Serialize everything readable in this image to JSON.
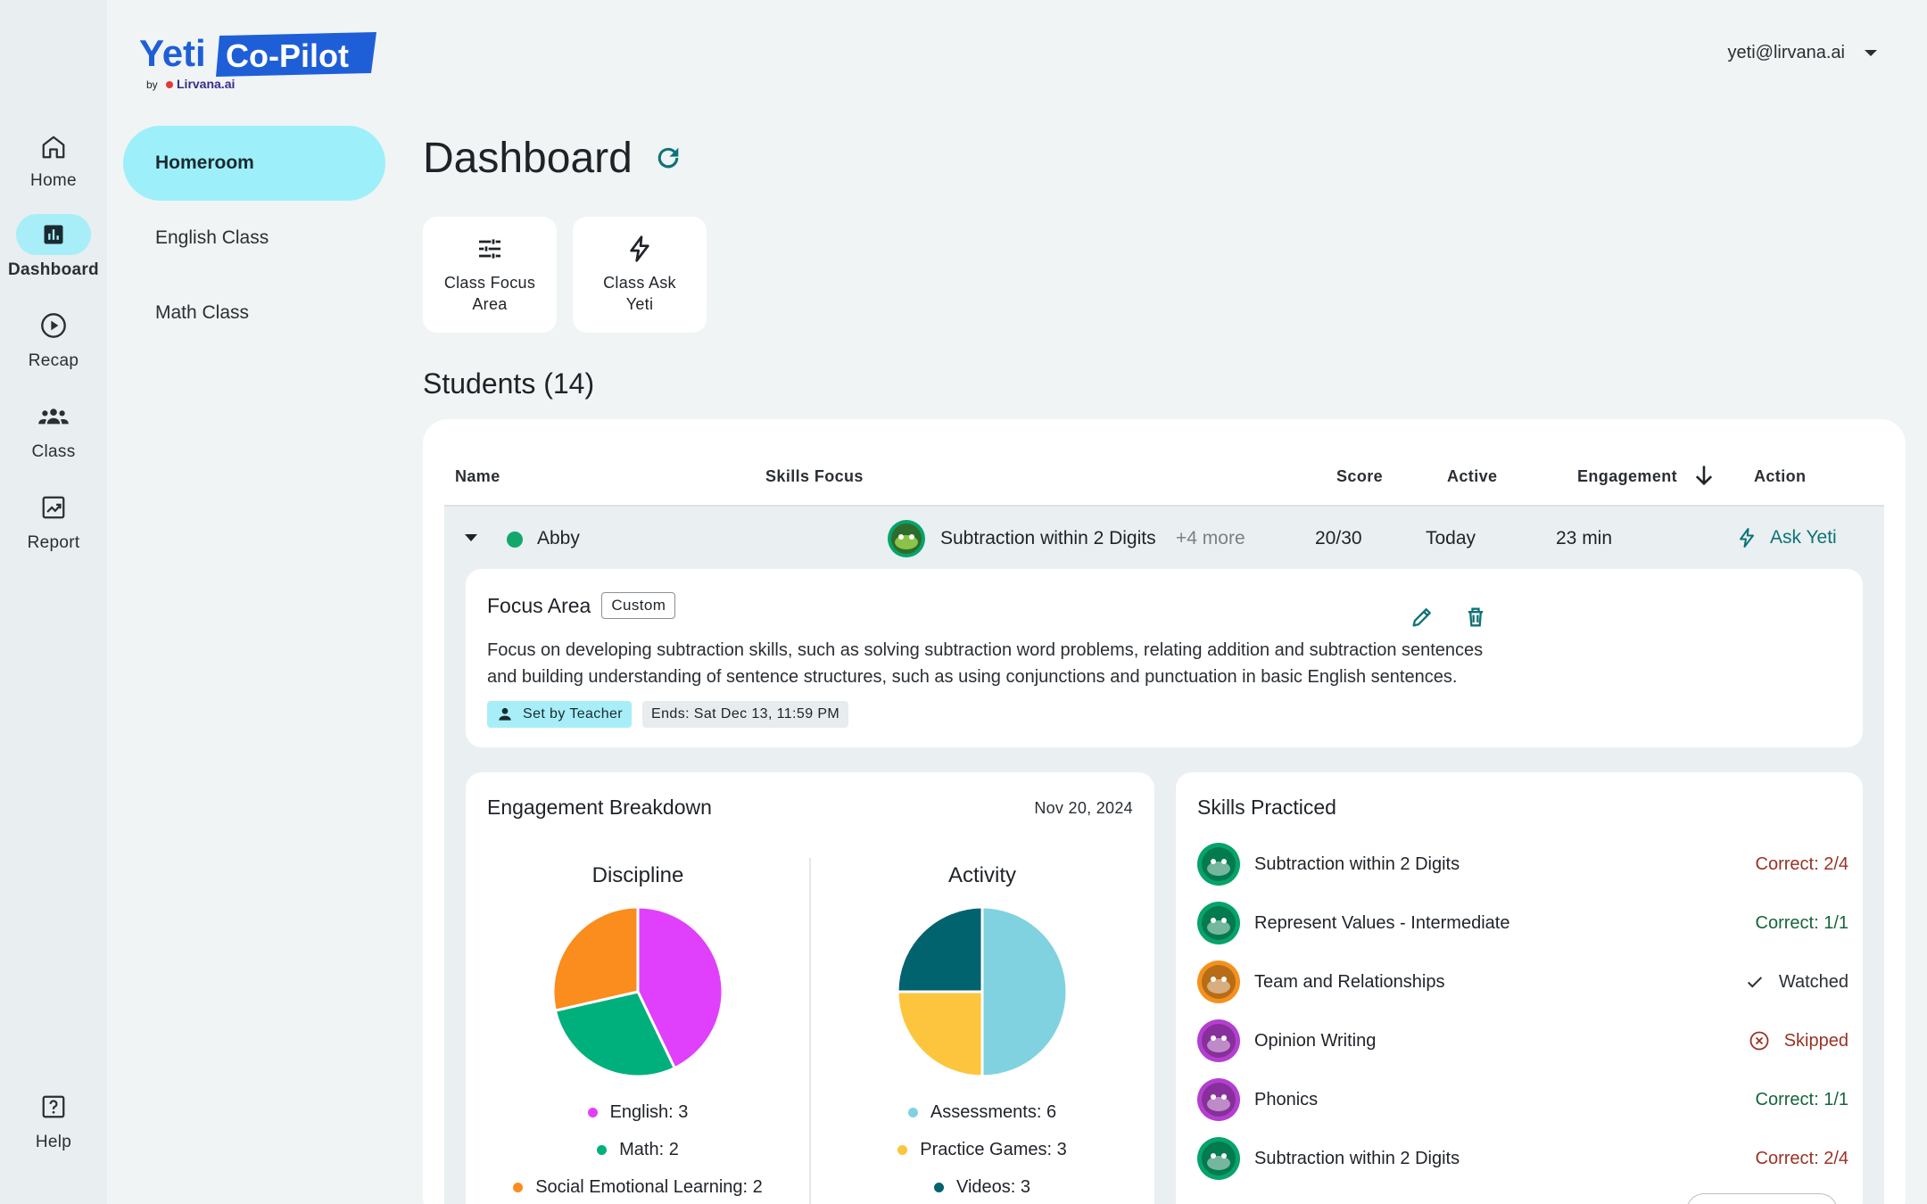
{
  "app": {
    "logo_main": "Yeti",
    "logo_brand": "Co-Pilot",
    "logo_by": "by",
    "logo_company": "Lirvana.ai",
    "user_email": "yeti@lirvana.ai"
  },
  "rail": [
    {
      "label": "Home",
      "icon": "home-icon"
    },
    {
      "label": "Dashboard",
      "icon": "bar-chart-icon"
    },
    {
      "label": "Recap",
      "icon": "play-circle-icon"
    },
    {
      "label": "Class",
      "icon": "group-icon"
    },
    {
      "label": "Report",
      "icon": "report-icon"
    },
    {
      "label": "Help",
      "icon": "help-icon"
    }
  ],
  "subnav": [
    {
      "label": "Homeroom"
    },
    {
      "label": "English Class"
    },
    {
      "label": "Math Class"
    }
  ],
  "page": {
    "title": "Dashboard",
    "quick_actions": [
      {
        "label": "Class Focus Area",
        "icon": "tune-icon"
      },
      {
        "label": "Class Ask Yeti",
        "icon": "bolt-icon"
      }
    ],
    "students_title": "Students (14)"
  },
  "table": {
    "headers": {
      "name": "Name",
      "skills": "Skills Focus",
      "score": "Score",
      "active": "Active",
      "engagement": "Engagement",
      "action": "Action"
    },
    "row": {
      "name": "Abby",
      "skill": "Subtraction within 2 Digits",
      "more": "+4 more",
      "score": "20/30",
      "active": "Today",
      "engagement": "23 min",
      "action": "Ask Yeti"
    }
  },
  "focus": {
    "title": "Focus Area",
    "tag": "Custom",
    "text_line1": "Focus on developing subtraction skills, such as solving subtraction word problems, relating addition and subtraction sentences",
    "text_line2": "and building understanding of sentence structures, such as using conjunctions and punctuation in basic English sentences.",
    "set_by": "Set by Teacher",
    "ends": "Ends: Sat Dec 13, 11:59 PM"
  },
  "engagement": {
    "title": "Engagement Breakdown",
    "date": "Nov 20, 2024",
    "discipline": {
      "title": "Discipline",
      "slices": [
        {
          "label": "English: 3",
          "value": 3,
          "color": "#e040fb"
        },
        {
          "label": "Math: 2",
          "value": 2,
          "color": "#00b07c"
        },
        {
          "label": "Social Emotional Learning: 2",
          "value": 2,
          "color": "#fb8c1e"
        }
      ]
    },
    "activity": {
      "title": "Activity",
      "slices": [
        {
          "label": "Assessments: 6",
          "value": 6,
          "color": "#80d2e0"
        },
        {
          "label": "Practice Games: 3",
          "value": 3,
          "color": "#fcc53d"
        },
        {
          "label": "Videos: 3",
          "value": 3,
          "color": "#01636e"
        }
      ]
    }
  },
  "skills": {
    "title": "Skills Practiced",
    "items": [
      {
        "name": "Subtraction within 2 Digits",
        "status": "Correct: 2/4",
        "kind": "bad",
        "icon_bg": "#06a36a"
      },
      {
        "name": "Represent Values - Intermediate",
        "status": "Correct: 1/1",
        "kind": "good",
        "icon_bg": "#06a36a"
      },
      {
        "name": "Team and Relationships",
        "status": "Watched",
        "kind": "watched",
        "icon_bg": "#f4911e"
      },
      {
        "name": "Opinion Writing",
        "status": "Skipped",
        "kind": "skipped",
        "icon_bg": "#b43fcf"
      },
      {
        "name": "Phonics",
        "status": "Correct: 1/1",
        "kind": "good",
        "icon_bg": "#b43fcf"
      },
      {
        "name": "Subtraction within 2 Digits",
        "status": "Correct: 2/4",
        "kind": "bad",
        "icon_bg": "#06a36a"
      }
    ]
  },
  "colors": {
    "accent": "#0d7377",
    "bad": "#9b3124",
    "good": "#16653a",
    "nav_active": "#9df0fa",
    "status_online": "#13a86b"
  }
}
